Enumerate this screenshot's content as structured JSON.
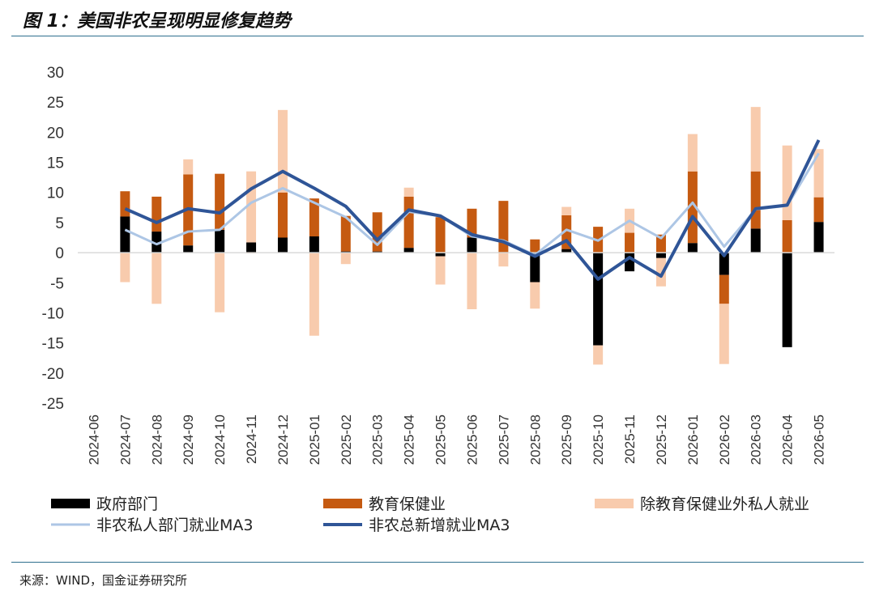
{
  "figure": {
    "title": "图 1：美国非农呈现明显修复趋势",
    "source": "来源：WIND，国金证券研究所"
  },
  "chart_data": {
    "type": "bar",
    "stacked": true,
    "categories": [
      "2024-06",
      "2024-07",
      "2024-08",
      "2024-09",
      "2024-10",
      "2024-11",
      "2024-12",
      "2025-01",
      "2025-02",
      "2025-03",
      "2025-04",
      "2025-05",
      "2025-06",
      "2025-07",
      "2025-08",
      "2025-09",
      "2025-10",
      "2025-11",
      "2025-12",
      "2026-01",
      "2026-02",
      "2026-03",
      "2026-04",
      "2026-05"
    ],
    "ylim": [
      -25,
      30
    ],
    "yticks": [
      30,
      25,
      20,
      15,
      10,
      5,
      0,
      -5,
      -10,
      -15,
      -20,
      -25
    ],
    "grid": false,
    "legend_position": "bottom",
    "colors": {
      "gov": "#000000",
      "edu_health": "#c55a11",
      "other_private": "#f8cbad",
      "private_ma3": "#adc6e5",
      "total_ma3": "#2f5597",
      "axis": "#d9d9d9",
      "rule": "#2e6f8e"
    },
    "series": [
      {
        "name": "政府部门",
        "kind": "bar",
        "color_key": "gov",
        "values": [
          null,
          6.0,
          3.5,
          1.2,
          3.8,
          1.7,
          2.5,
          2.7,
          0.2,
          0.2,
          0.8,
          -0.6,
          2.5,
          0.0,
          -4.9,
          0.6,
          -15.4,
          -3.1,
          -0.9,
          1.6,
          -3.7,
          4.0,
          -15.7,
          5.1
        ]
      },
      {
        "name": "教育保健业",
        "kind": "bar",
        "color_key": "edu_health",
        "values": [
          null,
          4.2,
          5.8,
          11.8,
          9.3,
          -0.1,
          7.5,
          6.3,
          5.9,
          6.5,
          8.5,
          5.9,
          4.8,
          8.6,
          2.2,
          5.6,
          4.3,
          3.3,
          3.0,
          11.9,
          -4.8,
          9.5,
          5.4,
          4.1
        ]
      },
      {
        "name": "除教育保健业外私人就业",
        "kind": "bar",
        "color_key": "other_private",
        "values": [
          null,
          -4.9,
          -8.5,
          2.5,
          -9.9,
          11.8,
          13.7,
          -13.8,
          -1.9,
          0.0,
          1.5,
          -4.7,
          -9.4,
          -2.3,
          -4.4,
          1.4,
          -3.2,
          4.0,
          -4.7,
          6.2,
          -10.0,
          10.7,
          12.4,
          8.0
        ]
      },
      {
        "name": "非农私人部门就业MA3",
        "kind": "line",
        "color_key": "private_ma3",
        "values": [
          null,
          3.8,
          1.4,
          3.5,
          3.8,
          8.3,
          10.7,
          8.3,
          5.9,
          1.3,
          6.8,
          6.1,
          2.7,
          2.0,
          -0.4,
          3.8,
          2.0,
          5.3,
          2.4,
          8.3,
          1.0,
          7.2,
          7.8,
          16.5
        ]
      },
      {
        "name": "非农总新增就业MA3",
        "kind": "line",
        "color_key": "total_ma3",
        "values": [
          null,
          7.3,
          5.0,
          7.3,
          6.6,
          10.6,
          13.5,
          10.7,
          7.7,
          2.1,
          7.1,
          6.1,
          3.0,
          1.8,
          -0.6,
          2.0,
          -4.4,
          -0.8,
          -3.9,
          6.0,
          -0.5,
          7.3,
          7.9,
          18.7
        ]
      }
    ]
  }
}
